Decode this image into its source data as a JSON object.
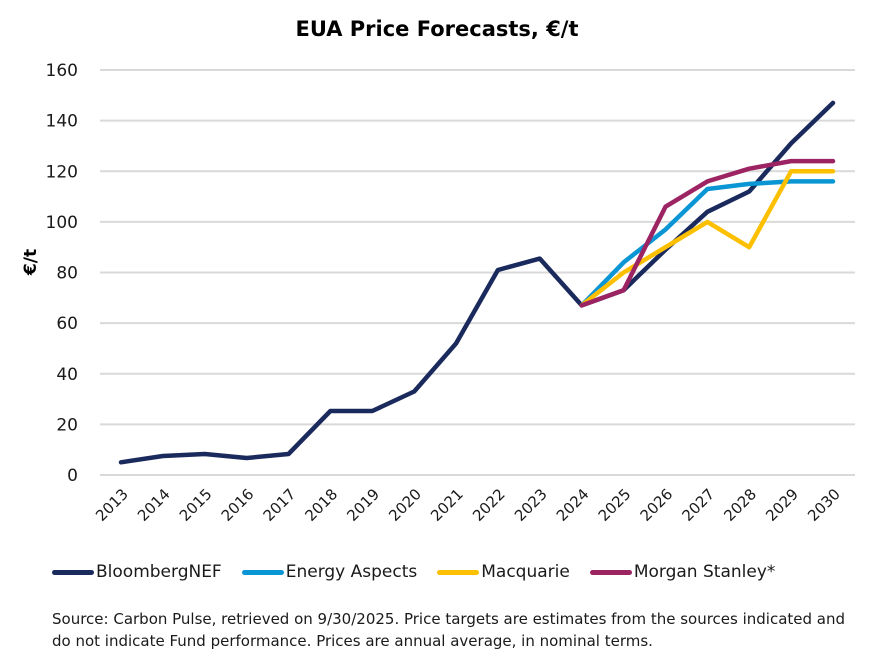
{
  "chart_data": {
    "type": "line",
    "title": "EUA Price Forecasts, €/t",
    "xlabel": "",
    "ylabel": "€/t",
    "ylim": [
      0,
      160
    ],
    "yticks": [
      0,
      20,
      40,
      60,
      80,
      100,
      120,
      140,
      160
    ],
    "grid": true,
    "legend_position": "bottom",
    "x": [
      2013,
      2014,
      2015,
      2016,
      2017,
      2018,
      2019,
      2020,
      2021,
      2022,
      2023,
      2024,
      2025,
      2026,
      2027,
      2028,
      2029,
      2030
    ],
    "series": [
      {
        "name": "BloombergNEF",
        "color": "#1b2a5c",
        "x": [
          2013,
          2014,
          2015,
          2016,
          2017,
          2018,
          2019,
          2020,
          2021,
          2022,
          2023,
          2024,
          2025,
          2026,
          2027,
          2028,
          2029,
          2030
        ],
        "values": [
          5,
          7.5,
          8.3,
          6.7,
          8.3,
          25.3,
          25.3,
          33,
          52,
          81,
          85.5,
          67,
          73,
          89,
          104,
          112,
          131,
          147
        ]
      },
      {
        "name": "Energy Aspects",
        "color": "#0a96d4",
        "x": [
          2024,
          2025,
          2026,
          2027,
          2028,
          2029,
          2030
        ],
        "values": [
          67,
          84,
          97,
          113,
          115,
          116,
          116
        ]
      },
      {
        "name": "Macquarie",
        "color": "#fcc000",
        "x": [
          2024,
          2025,
          2026,
          2027,
          2028,
          2029,
          2030
        ],
        "values": [
          67,
          80,
          90,
          100,
          90,
          120,
          120
        ]
      },
      {
        "name": "Morgan Stanley*",
        "color": "#9c2463",
        "x": [
          2024,
          2025,
          2026,
          2027,
          2028,
          2029,
          2030
        ],
        "values": [
          67,
          73,
          106,
          116,
          121,
          124,
          124
        ]
      }
    ]
  },
  "legend": {
    "items": [
      {
        "label": "BloombergNEF",
        "color": "#1b2a5c"
      },
      {
        "label": "Energy Aspects",
        "color": "#0a96d4"
      },
      {
        "label": "Macquarie",
        "color": "#fcc000"
      },
      {
        "label": "Morgan Stanley*",
        "color": "#9c2463"
      }
    ]
  },
  "source_note": "Source: Carbon Pulse, retrieved on 9/30/2025. Price targets are estimates from the sources indicated and do not indicate Fund performance. Prices are annual average, in nominal terms."
}
